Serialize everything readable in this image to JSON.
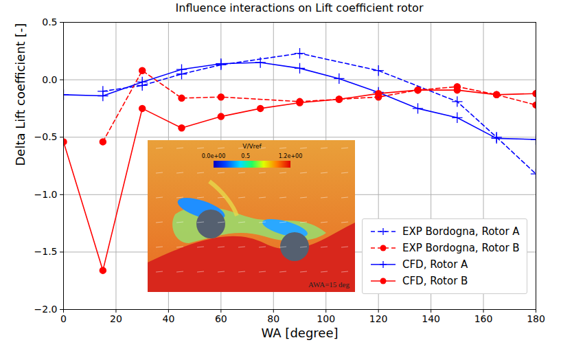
{
  "chart_data": {
    "type": "line",
    "title": "Influence interactions on Lift coefficient rotor",
    "x_label": "WA [degree]",
    "y_label": "Delta Lift coefficient [-]",
    "xlim": [
      0,
      180
    ],
    "ylim": [
      -2,
      0.5
    ],
    "xticks": [
      0,
      20,
      40,
      60,
      80,
      100,
      120,
      140,
      160,
      180
    ],
    "yticks": [
      {
        "value": -2,
        "label": "−2.0"
      },
      {
        "value": -1.5,
        "label": "−1.5"
      },
      {
        "value": -1,
        "label": "−1.0"
      },
      {
        "value": -0.5,
        "label": "−0.5"
      },
      {
        "value": 0,
        "label": "0.0"
      },
      {
        "value": 0.5,
        "label": "0.5"
      }
    ],
    "grid": true,
    "legend": "lower right",
    "series": [
      {
        "name": "EXP Bordogna, Rotor A",
        "color": "#0000ff",
        "line_style": "dashed",
        "marker": "plus",
        "x": [
          15,
          30,
          45,
          60,
          90,
          120,
          150,
          165,
          180
        ],
        "values": [
          -0.1,
          -0.05,
          0.05,
          0.13,
          0.23,
          0.08,
          -0.19,
          -0.5,
          -0.82
        ]
      },
      {
        "name": "EXP Bordogna, Rotor B",
        "color": "#ff0000",
        "line_style": "dashed",
        "marker": "circle",
        "x": [
          15,
          30,
          45,
          60,
          90,
          105,
          120,
          135,
          150,
          165,
          180
        ],
        "values": [
          -0.54,
          0.08,
          -0.16,
          -0.15,
          -0.19,
          -0.17,
          -0.15,
          -0.09,
          -0.06,
          -0.13,
          -0.22
        ]
      },
      {
        "name": "CFD, Rotor A",
        "color": "#0000ff",
        "line_style": "solid",
        "marker": "plus",
        "x": [
          0,
          15,
          30,
          45,
          60,
          75,
          90,
          105,
          120,
          135,
          150,
          165,
          180
        ],
        "values": [
          -0.13,
          -0.14,
          -0.02,
          0.09,
          0.14,
          0.15,
          0.1,
          0.01,
          -0.11,
          -0.25,
          -0.33,
          -0.51,
          -0.52
        ]
      },
      {
        "name": "CFD, Rotor B",
        "color": "#ff0000",
        "line_style": "solid",
        "marker": "circle",
        "x": [
          0,
          15,
          30,
          45,
          60,
          75,
          90,
          105,
          120,
          135,
          150,
          165,
          180
        ],
        "values": [
          -0.54,
          -1.66,
          -0.25,
          -0.42,
          -0.32,
          -0.25,
          -0.2,
          -0.17,
          -0.12,
          -0.09,
          -0.09,
          -0.13,
          -0.12
        ]
      }
    ],
    "inset": {
      "colorbar_label": "V/Vref",
      "colorbar_range": [
        0,
        1.2
      ],
      "colorbar_ticks": [
        {
          "value": 0,
          "label": "0.0e+00"
        },
        {
          "value": 0.5,
          "label": "0.5"
        },
        {
          "value": 1.2,
          "label": "1.2e+00"
        }
      ],
      "annotation": "AWA=15 deg"
    }
  }
}
